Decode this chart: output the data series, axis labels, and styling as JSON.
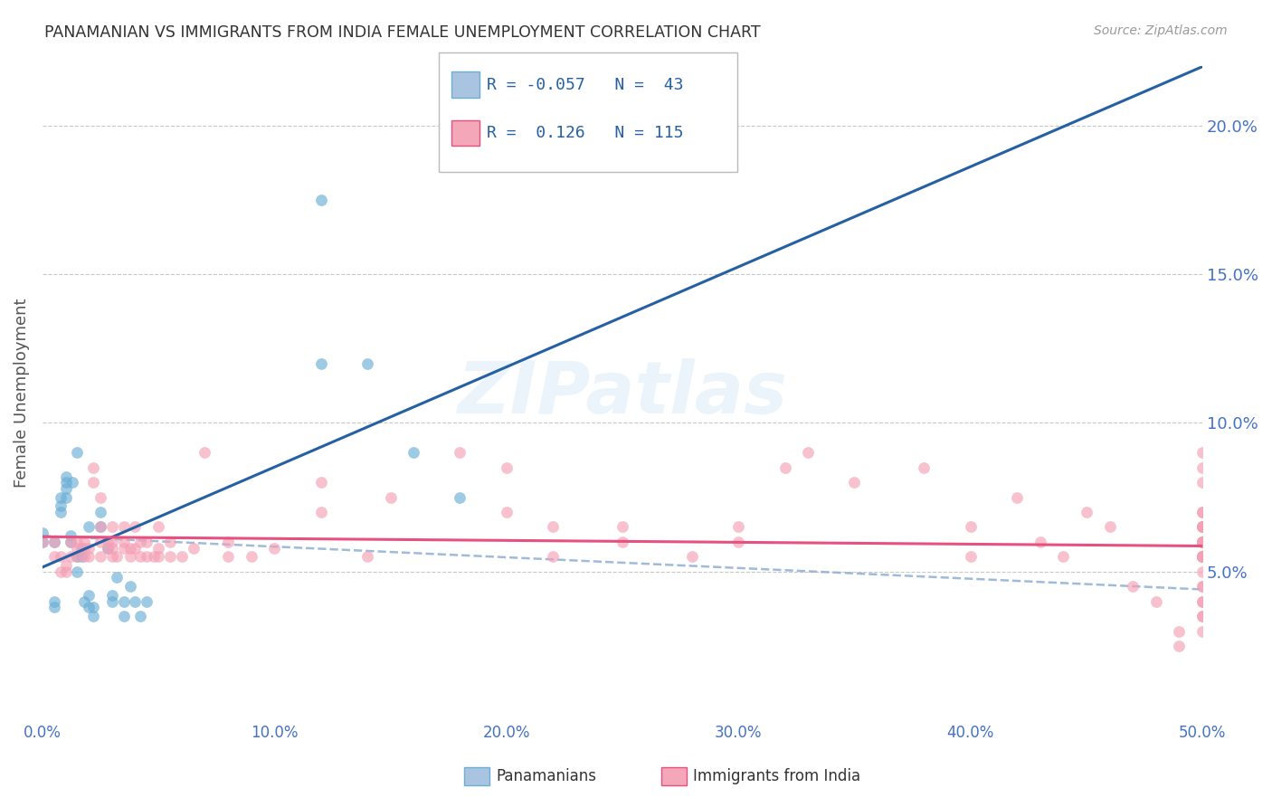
{
  "title": "PANAMANIAN VS IMMIGRANTS FROM INDIA FEMALE UNEMPLOYMENT CORRELATION CHART",
  "source": "Source: ZipAtlas.com",
  "ylabel": "Female Unemployment",
  "xlim": [
    0.0,
    0.5
  ],
  "ylim": [
    0.0,
    0.22
  ],
  "xticks": [
    0.0,
    0.1,
    0.2,
    0.3,
    0.4,
    0.5
  ],
  "yticks": [
    0.05,
    0.1,
    0.15,
    0.2
  ],
  "xtick_labels": [
    "0.0%",
    "10.0%",
    "20.0%",
    "30.0%",
    "40.0%",
    "50.0%"
  ],
  "ytick_labels": [
    "5.0%",
    "10.0%",
    "15.0%",
    "20.0%"
  ],
  "title_color": "#333333",
  "grid_color": "#c8c8c8",
  "background_color": "#ffffff",
  "legend": {
    "series1_label": "Panamanians",
    "series2_label": "Immigrants from India",
    "series1_R": "-0.057",
    "series1_N": "43",
    "series2_R": "0.126",
    "series2_N": "115",
    "series1_fill": "#a8c4e0",
    "series1_edge": "#6baed6",
    "series2_fill": "#f4a7b9",
    "series2_edge": "#e85080"
  },
  "series1_color": "#6baed6",
  "series2_color": "#f4a0b5",
  "trend1_color": "#2660a4",
  "trend2_color": "#e85080",
  "dash_color": "#8fafd4",
  "scatter1_x": [
    0.0,
    0.0,
    0.005,
    0.005,
    0.005,
    0.008,
    0.008,
    0.008,
    0.01,
    0.01,
    0.01,
    0.01,
    0.012,
    0.012,
    0.013,
    0.015,
    0.015,
    0.015,
    0.017,
    0.017,
    0.018,
    0.02,
    0.02,
    0.02,
    0.022,
    0.022,
    0.025,
    0.025,
    0.028,
    0.03,
    0.03,
    0.032,
    0.035,
    0.035,
    0.038,
    0.04,
    0.042,
    0.045,
    0.12,
    0.12,
    0.14,
    0.16,
    0.18
  ],
  "scatter1_y": [
    0.06,
    0.063,
    0.04,
    0.038,
    0.06,
    0.07,
    0.072,
    0.075,
    0.075,
    0.078,
    0.08,
    0.082,
    0.06,
    0.062,
    0.08,
    0.09,
    0.055,
    0.05,
    0.055,
    0.058,
    0.04,
    0.065,
    0.038,
    0.042,
    0.035,
    0.038,
    0.07,
    0.065,
    0.058,
    0.04,
    0.042,
    0.048,
    0.04,
    0.035,
    0.045,
    0.04,
    0.035,
    0.04,
    0.175,
    0.12,
    0.12,
    0.09,
    0.075
  ],
  "scatter2_x": [
    0.0,
    0.005,
    0.005,
    0.008,
    0.008,
    0.01,
    0.01,
    0.012,
    0.012,
    0.015,
    0.015,
    0.015,
    0.018,
    0.018,
    0.018,
    0.02,
    0.02,
    0.022,
    0.022,
    0.025,
    0.025,
    0.025,
    0.025,
    0.028,
    0.028,
    0.03,
    0.03,
    0.03,
    0.03,
    0.032,
    0.035,
    0.035,
    0.035,
    0.038,
    0.038,
    0.04,
    0.04,
    0.042,
    0.042,
    0.045,
    0.045,
    0.048,
    0.05,
    0.05,
    0.05,
    0.055,
    0.055,
    0.06,
    0.065,
    0.07,
    0.08,
    0.08,
    0.09,
    0.1,
    0.12,
    0.12,
    0.14,
    0.15,
    0.18,
    0.2,
    0.2,
    0.22,
    0.22,
    0.25,
    0.25,
    0.28,
    0.3,
    0.3,
    0.32,
    0.33,
    0.35,
    0.38,
    0.4,
    0.4,
    0.42,
    0.43,
    0.44,
    0.45,
    0.46,
    0.47,
    0.48,
    0.49,
    0.49,
    0.5,
    0.5,
    0.5,
    0.5,
    0.5,
    0.5,
    0.5,
    0.5,
    0.5,
    0.5,
    0.5,
    0.5,
    0.5,
    0.5,
    0.5,
    0.5,
    0.5,
    0.5,
    0.5,
    0.5,
    0.5,
    0.5,
    0.5,
    0.5,
    0.5,
    0.5,
    0.5,
    0.5,
    0.5,
    0.5,
    0.5,
    0.5
  ],
  "scatter2_y": [
    0.06,
    0.055,
    0.06,
    0.055,
    0.05,
    0.05,
    0.052,
    0.055,
    0.06,
    0.055,
    0.06,
    0.058,
    0.055,
    0.058,
    0.06,
    0.055,
    0.058,
    0.08,
    0.085,
    0.055,
    0.06,
    0.065,
    0.075,
    0.058,
    0.06,
    0.055,
    0.058,
    0.06,
    0.065,
    0.055,
    0.058,
    0.06,
    0.065,
    0.055,
    0.058,
    0.058,
    0.065,
    0.055,
    0.06,
    0.055,
    0.06,
    0.055,
    0.058,
    0.055,
    0.065,
    0.055,
    0.06,
    0.055,
    0.058,
    0.09,
    0.055,
    0.06,
    0.055,
    0.058,
    0.07,
    0.08,
    0.055,
    0.075,
    0.09,
    0.07,
    0.085,
    0.065,
    0.055,
    0.06,
    0.065,
    0.055,
    0.06,
    0.065,
    0.085,
    0.09,
    0.08,
    0.085,
    0.065,
    0.055,
    0.075,
    0.06,
    0.055,
    0.07,
    0.065,
    0.045,
    0.04,
    0.025,
    0.03,
    0.035,
    0.07,
    0.06,
    0.045,
    0.055,
    0.07,
    0.065,
    0.085,
    0.09,
    0.055,
    0.06,
    0.065,
    0.055,
    0.06,
    0.055,
    0.04,
    0.035,
    0.08,
    0.065,
    0.055,
    0.06,
    0.065,
    0.055,
    0.06,
    0.055,
    0.04,
    0.03,
    0.045,
    0.05,
    0.055,
    0.06,
    0.065
  ]
}
